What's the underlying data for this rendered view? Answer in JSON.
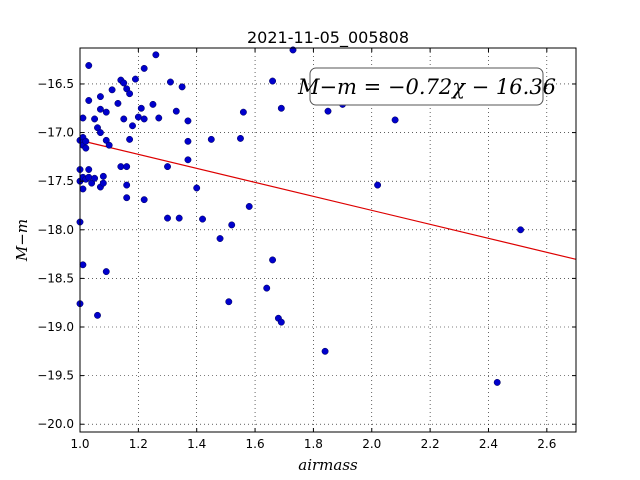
{
  "chart_data": {
    "type": "scatter",
    "title": "2021-11-05_005808",
    "xlabel": "airmass",
    "ylabel": "M−m",
    "xlim": [
      1.0,
      2.7
    ],
    "ylim": [
      -20.08,
      -16.13
    ],
    "y_inverted": true,
    "grid": true,
    "grid_style": "dotted",
    "x_ticks": [
      1.0,
      1.2,
      1.4,
      1.6,
      1.8,
      2.0,
      2.2,
      2.4,
      2.6
    ],
    "x_tick_labels": [
      "1.0",
      "1.2",
      "1.4",
      "1.6",
      "1.8",
      "2.0",
      "2.2",
      "2.4",
      "2.6"
    ],
    "y_ticks": [
      -16.5,
      -17.0,
      -17.5,
      -18.0,
      -18.5,
      -19.0,
      -19.5,
      -20.0
    ],
    "y_tick_labels": [
      "−16.5",
      "−17.0",
      "−17.5",
      "−18.0",
      "−18.5",
      "−19.0",
      "−19.5",
      "−20.0"
    ],
    "annotation": "M−m = −0.72χ − 16.36",
    "annotation_position": "top-right",
    "marker_color": "#0000cc",
    "fit": {
      "slope": -0.72,
      "intercept": -16.36,
      "color": "#dd0000"
    },
    "points": [
      [
        1.0,
        -17.08
      ],
      [
        1.0,
        -17.38
      ],
      [
        1.0,
        -17.5
      ],
      [
        1.0,
        -17.92
      ],
      [
        1.0,
        -18.76
      ],
      [
        1.01,
        -16.85
      ],
      [
        1.01,
        -17.05
      ],
      [
        1.01,
        -17.1
      ],
      [
        1.01,
        -17.13
      ],
      [
        1.01,
        -17.46
      ],
      [
        1.01,
        -17.58
      ],
      [
        1.01,
        -18.36
      ],
      [
        1.02,
        -17.09
      ],
      [
        1.02,
        -17.16
      ],
      [
        1.02,
        -17.48
      ],
      [
        1.03,
        -16.31
      ],
      [
        1.03,
        -16.67
      ],
      [
        1.03,
        -17.38
      ],
      [
        1.03,
        -17.46
      ],
      [
        1.04,
        -17.52
      ],
      [
        1.05,
        -16.86
      ],
      [
        1.05,
        -17.47
      ],
      [
        1.06,
        -16.95
      ],
      [
        1.06,
        -18.88
      ],
      [
        1.07,
        -17.0
      ],
      [
        1.07,
        -16.63
      ],
      [
        1.07,
        -16.76
      ],
      [
        1.07,
        -17.56
      ],
      [
        1.08,
        -17.45
      ],
      [
        1.08,
        -17.52
      ],
      [
        1.09,
        -16.79
      ],
      [
        1.09,
        -17.08
      ],
      [
        1.09,
        -18.43
      ],
      [
        1.1,
        -17.13
      ],
      [
        1.11,
        -16.56
      ],
      [
        1.13,
        -16.7
      ],
      [
        1.14,
        -16.46
      ],
      [
        1.14,
        -17.35
      ],
      [
        1.15,
        -16.86
      ],
      [
        1.15,
        -16.49
      ],
      [
        1.16,
        -16.55
      ],
      [
        1.16,
        -17.35
      ],
      [
        1.16,
        -17.54
      ],
      [
        1.16,
        -17.67
      ],
      [
        1.17,
        -16.6
      ],
      [
        1.17,
        -17.07
      ],
      [
        1.18,
        -16.93
      ],
      [
        1.19,
        -16.45
      ],
      [
        1.2,
        -16.84
      ],
      [
        1.21,
        -16.75
      ],
      [
        1.22,
        -16.86
      ],
      [
        1.22,
        -16.34
      ],
      [
        1.22,
        -17.69
      ],
      [
        1.25,
        -16.71
      ],
      [
        1.26,
        -16.2
      ],
      [
        1.27,
        -16.85
      ],
      [
        1.3,
        -17.35
      ],
      [
        1.3,
        -17.88
      ],
      [
        1.31,
        -16.48
      ],
      [
        1.33,
        -16.78
      ],
      [
        1.34,
        -17.88
      ],
      [
        1.35,
        -16.53
      ],
      [
        1.37,
        -16.88
      ],
      [
        1.37,
        -17.09
      ],
      [
        1.37,
        -17.28
      ],
      [
        1.4,
        -17.57
      ],
      [
        1.42,
        -17.89
      ],
      [
        1.45,
        -17.07
      ],
      [
        1.48,
        -18.09
      ],
      [
        1.51,
        -18.74
      ],
      [
        1.52,
        -17.95
      ],
      [
        1.55,
        -17.06
      ],
      [
        1.56,
        -16.79
      ],
      [
        1.58,
        -17.76
      ],
      [
        1.64,
        -18.6
      ],
      [
        1.66,
        -16.47
      ],
      [
        1.66,
        -18.31
      ],
      [
        1.68,
        -18.91
      ],
      [
        1.69,
        -18.95
      ],
      [
        1.69,
        -16.75
      ],
      [
        1.73,
        -16.15
      ],
      [
        1.84,
        -19.25
      ],
      [
        1.85,
        -16.78
      ],
      [
        1.9,
        -16.71
      ],
      [
        1.95,
        -16.65
      ],
      [
        2.02,
        -17.54
      ],
      [
        2.08,
        -16.87
      ],
      [
        2.43,
        -19.57
      ],
      [
        2.51,
        -18.0
      ]
    ]
  }
}
